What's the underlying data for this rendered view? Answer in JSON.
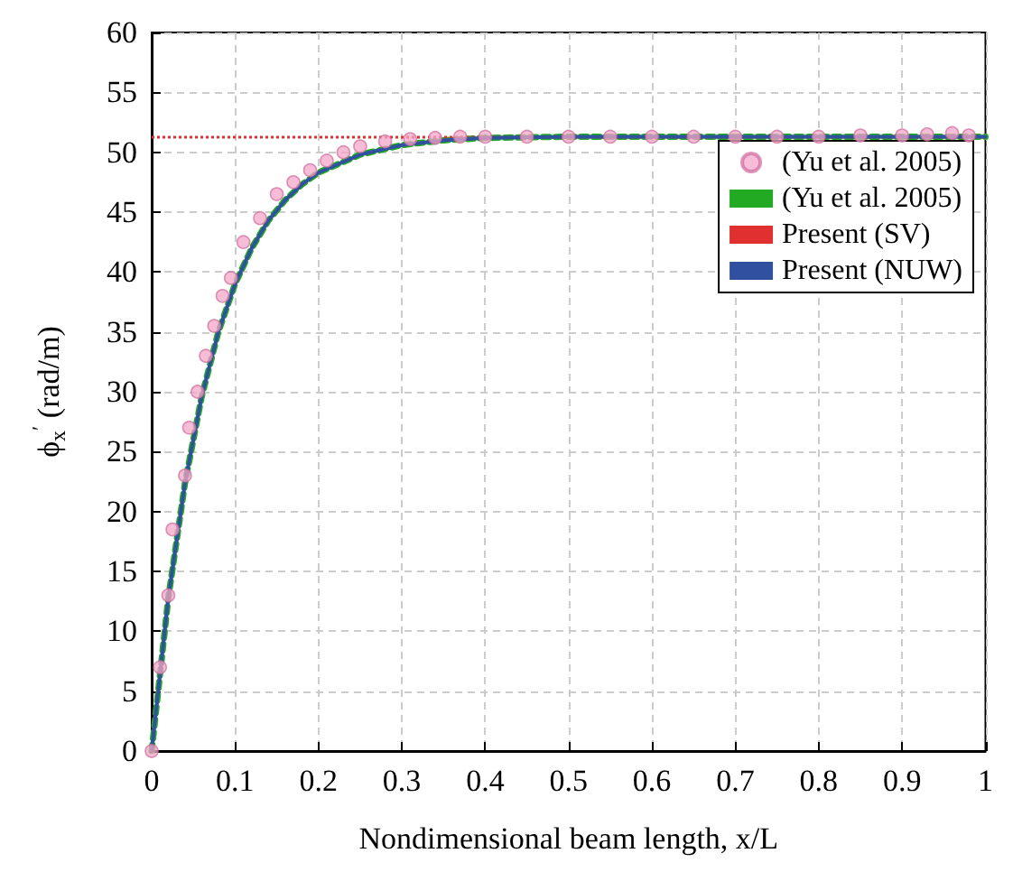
{
  "chart_data": {
    "type": "line",
    "xlabel": "Nondimensional beam length, x/L",
    "ylabel": "ϕ$_{x}$$^{′}$ (rad/m)",
    "xlim": [
      0,
      1
    ],
    "xticks": [
      0,
      0.1,
      0.2,
      0.3,
      0.4,
      0.5,
      0.6,
      0.7,
      0.8,
      0.9,
      1
    ],
    "ylim": [
      0,
      60
    ],
    "yticks": [
      0,
      5,
      10,
      15,
      20,
      25,
      30,
      35,
      40,
      45,
      50,
      55,
      60
    ],
    "grid": true,
    "legend": "right",
    "ref_lines": [
      {
        "axis": "y",
        "value": 51.3,
        "label": "Present (SV)",
        "color": "#e03030",
        "line_style": "dotted"
      }
    ],
    "series": [
      {
        "name": "(Yu et al. 2005)",
        "type": "scatter",
        "marker": "circle",
        "color": "#f4a6c8",
        "x": [
          0,
          0.01,
          0.02,
          0.025,
          0.04,
          0.045,
          0.055,
          0.065,
          0.075,
          0.085,
          0.095,
          0.11,
          0.13,
          0.15,
          0.17,
          0.19,
          0.21,
          0.23,
          0.25,
          0.28,
          0.31,
          0.34,
          0.37,
          0.4,
          0.45,
          0.5,
          0.55,
          0.6,
          0.65,
          0.7,
          0.75,
          0.8,
          0.85,
          0.9,
          0.93,
          0.96,
          0.98
        ],
        "values": [
          0,
          7,
          13,
          18.5,
          23,
          27,
          30,
          33,
          35.5,
          38,
          39.5,
          42.5,
          44.5,
          46.5,
          47.5,
          48.5,
          49.3,
          50,
          50.5,
          50.9,
          51.1,
          51.2,
          51.3,
          51.3,
          51.3,
          51.3,
          51.3,
          51.3,
          51.3,
          51.3,
          51.3,
          51.3,
          51.4,
          51.4,
          51.5,
          51.6,
          51.4
        ]
      },
      {
        "name": "(Yu et al. 2005)",
        "line_style": "dotted",
        "marker": "none",
        "color": "#22aa22",
        "x": [
          0,
          0.02,
          0.04,
          0.06,
          0.08,
          0.1,
          0.12,
          0.14,
          0.16,
          0.18,
          0.2,
          0.25,
          0.3,
          0.35,
          0.4,
          0.5,
          0.6,
          0.7,
          0.8,
          0.9,
          1
        ],
        "values": [
          0,
          12.8,
          22.4,
          29.6,
          35,
          39,
          42,
          44.3,
          46,
          47.3,
          48.3,
          49.8,
          50.6,
          51,
          51.2,
          51.3,
          51.3,
          51.3,
          51.3,
          51.3,
          51.3
        ]
      },
      {
        "name": "Present (NUW)",
        "line_style": "solid",
        "marker": "none",
        "color": "#3050a0",
        "x": [
          0,
          0.02,
          0.04,
          0.06,
          0.08,
          0.1,
          0.12,
          0.14,
          0.16,
          0.18,
          0.2,
          0.25,
          0.3,
          0.35,
          0.4,
          0.5,
          0.6,
          0.7,
          0.8,
          0.9,
          1
        ],
        "values": [
          0,
          12.8,
          22.4,
          29.6,
          35,
          39,
          42,
          44.3,
          46,
          47.3,
          48.3,
          49.8,
          50.6,
          51,
          51.2,
          51.3,
          51.3,
          51.3,
          51.3,
          51.3,
          51.3
        ]
      }
    ]
  }
}
